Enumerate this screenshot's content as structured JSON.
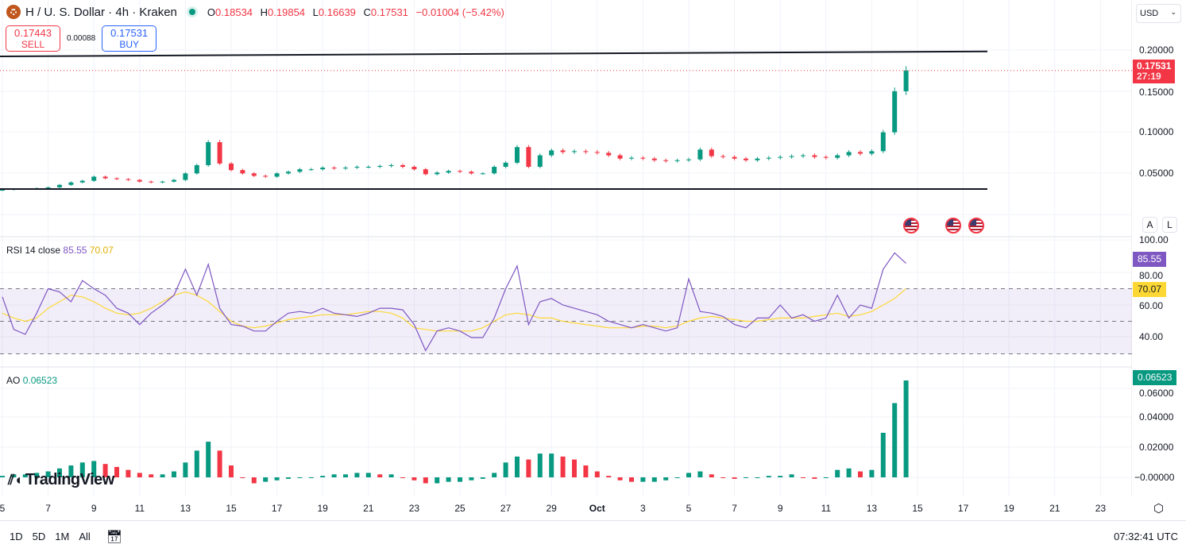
{
  "header": {
    "symbol": "H / U. S. Dollar · 4h · Kraken",
    "open_label": "O",
    "open": "0.18534",
    "high_label": "H",
    "high": "0.19854",
    "low_label": "L",
    "low": "0.16639",
    "close_label": "C",
    "close": "0.17531",
    "change": "−0.01004 (−5.42%)"
  },
  "trade": {
    "sell_price": "0.17443",
    "sell_label": "SELL",
    "spread": "0.00088",
    "buy_price": "0.17531",
    "buy_label": "BUY"
  },
  "currency": "USD",
  "price_axis": {
    "ticks": [
      "0.20000",
      "0.15000",
      "0.10000",
      "0.05000"
    ],
    "last_price": "0.17531",
    "countdown": "27:19",
    "scale_auto": "A",
    "scale_log": "L"
  },
  "rsi": {
    "label": "RSI 14 close",
    "value": "85.55",
    "ma_value": "70.07",
    "ticks": [
      "100.00",
      "80.00",
      "60.00",
      "40.00"
    ]
  },
  "ao": {
    "label": "AO",
    "value": "0.06523",
    "ticks": [
      "0.06000",
      "0.04000",
      "0.02000",
      "−0.00000"
    ]
  },
  "x_axis": {
    "ticks": [
      "5",
      "7",
      "9",
      "11",
      "13",
      "15",
      "17",
      "19",
      "21",
      "23",
      "25",
      "27",
      "29",
      "Oct",
      "3",
      "5",
      "7",
      "9",
      "11",
      "13",
      "15",
      "17",
      "19",
      "21",
      "23"
    ]
  },
  "bottom": {
    "ranges": [
      "1D",
      "5D",
      "1M",
      "All"
    ],
    "clock": "07:32:41 UTC"
  },
  "watermark": "TradingView",
  "colors": {
    "up": "#089981",
    "down": "#f23645",
    "rsi": "#7e57c2",
    "rsi_ma": "#fdd835",
    "accent": "#2962ff"
  },
  "chart_data": [
    {
      "type": "candlestick",
      "title": "H / U. S. Dollar · 4h · Kraken",
      "x_start": "Sep 5",
      "x_end": "Oct 14",
      "sample": "12h approx",
      "ylim": [
        0,
        0.21
      ],
      "closes": [
        0.03,
        0.031,
        0.031,
        0.032,
        0.033,
        0.036,
        0.039,
        0.041,
        0.046,
        0.044,
        0.043,
        0.042,
        0.04,
        0.039,
        0.04,
        0.042,
        0.05,
        0.06,
        0.088,
        0.062,
        0.054,
        0.05,
        0.047,
        0.046,
        0.05,
        0.052,
        0.055,
        0.055,
        0.057,
        0.056,
        0.057,
        0.058,
        0.058,
        0.059,
        0.06,
        0.058,
        0.055,
        0.049,
        0.051,
        0.053,
        0.052,
        0.05,
        0.05,
        0.058,
        0.063,
        0.082,
        0.058,
        0.072,
        0.078,
        0.076,
        0.077,
        0.076,
        0.075,
        0.072,
        0.068,
        0.069,
        0.068,
        0.066,
        0.065,
        0.066,
        0.067,
        0.079,
        0.071,
        0.07,
        0.068,
        0.066,
        0.068,
        0.069,
        0.07,
        0.071,
        0.072,
        0.07,
        0.069,
        0.072,
        0.076,
        0.074,
        0.077,
        0.1,
        0.15,
        0.17531
      ],
      "trendlines": [
        {
          "from": 0.1925,
          "to": 0.1985
        },
        {
          "from": 0.031,
          "to": 0.031
        }
      ],
      "last_price": 0.17531
    },
    {
      "type": "line",
      "title": "RSI 14 close",
      "ylim": [
        25,
        100
      ],
      "bands": [
        30,
        50,
        70
      ],
      "series": [
        {
          "name": "RSI",
          "values": [
            65,
            45,
            42,
            55,
            70,
            68,
            62,
            75,
            70,
            66,
            58,
            55,
            48,
            55,
            60,
            66,
            82,
            66,
            85,
            58,
            48,
            47,
            44,
            44,
            50,
            55,
            56,
            55,
            58,
            55,
            54,
            53,
            55,
            58,
            58,
            57,
            48,
            32,
            44,
            46,
            44,
            40,
            40,
            52,
            70,
            84,
            48,
            62,
            64,
            60,
            58,
            56,
            54,
            50,
            48,
            46,
            48,
            46,
            44,
            46,
            76,
            56,
            55,
            53,
            48,
            46,
            52,
            52,
            60,
            52,
            54,
            50,
            52,
            66,
            52,
            60,
            58,
            82,
            92,
            85.55
          ]
        },
        {
          "name": "MA",
          "values": [
            55,
            52,
            50,
            52,
            58,
            62,
            66,
            65,
            62,
            58,
            55,
            54,
            55,
            58,
            62,
            66,
            68,
            66,
            62,
            56,
            50,
            47,
            46,
            47,
            49,
            51,
            52,
            53,
            54,
            54,
            54,
            55,
            56,
            56,
            55,
            52,
            46,
            45,
            44,
            44,
            44,
            44,
            46,
            50,
            54,
            55,
            54,
            52,
            52,
            50,
            49,
            48,
            47,
            46,
            46,
            46,
            47,
            47,
            46,
            47,
            50,
            52,
            53,
            52,
            51,
            50,
            50,
            51,
            52,
            52,
            52,
            53,
            54,
            55,
            53,
            54,
            56,
            60,
            64,
            70.07
          ]
        }
      ]
    },
    {
      "type": "bar",
      "title": "AO",
      "ylim": [
        -0.008,
        0.068
      ],
      "values": [
        0.001,
        0.002,
        0.002,
        0.003,
        0.004,
        0.006,
        0.008,
        0.01,
        0.011,
        0.009,
        0.007,
        0.005,
        0.003,
        0.002,
        0.002,
        0.004,
        0.01,
        0.018,
        0.024,
        0.018,
        0.008,
        0.0,
        -0.004,
        -0.003,
        -0.002,
        -0.001,
        0.0,
        0.0,
        0.001,
        0.002,
        0.002,
        0.003,
        0.003,
        0.002,
        0.002,
        0.0,
        -0.002,
        -0.004,
        -0.004,
        -0.003,
        -0.003,
        -0.002,
        -0.001,
        0.003,
        0.01,
        0.014,
        0.012,
        0.016,
        0.016,
        0.014,
        0.012,
        0.008,
        0.004,
        0.001,
        -0.002,
        -0.003,
        -0.003,
        -0.003,
        -0.002,
        0.0,
        0.003,
        0.004,
        0.002,
        0.0,
        -0.001,
        0.0,
        0.0,
        0.001,
        0.001,
        0.002,
        0.0,
        -0.001,
        0.0,
        0.005,
        0.006,
        0.004,
        0.005,
        0.03,
        0.05,
        0.06523
      ]
    }
  ]
}
